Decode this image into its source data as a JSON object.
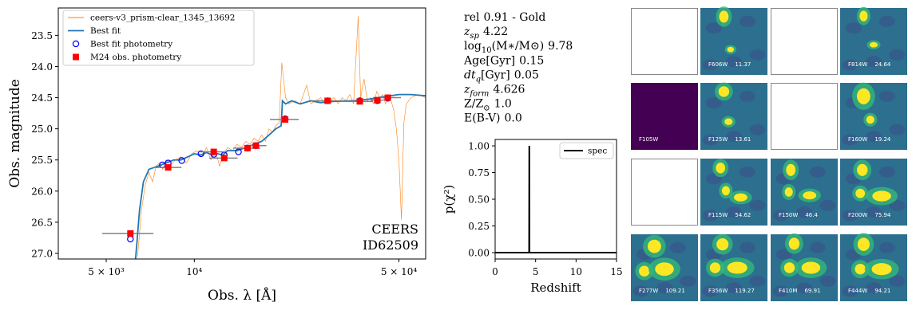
{
  "chart_data": [
    {
      "type": "line",
      "xlabel": "Obs. λ [Å]",
      "ylabel": "Obs. magnitude",
      "xlog": true,
      "xlim": [
        3430,
        61700
      ],
      "ylim": [
        27.09,
        23.06
      ],
      "xticks": [
        {
          "value": 5000,
          "label": "5 × 10³"
        },
        {
          "value": 10000,
          "label": "10⁴"
        },
        {
          "value": 50000,
          "label": "5 × 10⁴"
        }
      ],
      "yticks": [
        23.5,
        {
          "value": 24.0,
          "label": "24.0"
        },
        24.5,
        {
          "value": 25.0,
          "label": "25.0"
        },
        25.5,
        {
          "value": 26.0,
          "label": "26.0"
        },
        26.5,
        {
          "value": 27.0,
          "label": "27.0"
        }
      ],
      "legend": "upper left",
      "annotation": [
        "CEERS",
        "ID62509"
      ],
      "series": [
        {
          "name": "ceers-v3_prism-clear_1345_13692",
          "color": "#ff7f0e",
          "marker": "line",
          "width": 0.6,
          "x": [
            6400,
            6600,
            6800,
            7000,
            7200,
            7400,
            7600,
            7800,
            8000,
            8300,
            8600,
            9000,
            9400,
            9800,
            10200,
            10600,
            11000,
            11400,
            11800,
            12200,
            12600,
            13000,
            13500,
            14000,
            14500,
            15000,
            15500,
            16000,
            16500,
            17000,
            17500,
            18000,
            18500,
            19000,
            19500,
            19900,
            20500,
            21000,
            22000,
            23000,
            24200,
            25000,
            26000,
            27000,
            28000,
            29000,
            30000,
            31000,
            32000,
            33000,
            34000,
            35000,
            36290,
            37000,
            38000,
            39000,
            40000,
            41000,
            42000,
            43000,
            44000,
            45000,
            46000,
            47000,
            48000,
            49000,
            50000,
            51000,
            52000,
            53000,
            55000,
            58000,
            61700
          ],
          "values": [
            27.05,
            26.3,
            25.9,
            25.7,
            25.85,
            25.6,
            25.55,
            25.65,
            25.5,
            25.6,
            25.5,
            25.45,
            25.55,
            25.4,
            25.35,
            25.45,
            25.3,
            25.5,
            25.35,
            25.6,
            25.4,
            25.3,
            25.35,
            25.25,
            25.3,
            25.2,
            25.25,
            25.15,
            25.2,
            25.1,
            25.2,
            25.0,
            25.05,
            24.95,
            24.9,
            23.94,
            24.5,
            24.6,
            24.55,
            24.6,
            24.3,
            24.6,
            24.55,
            24.5,
            24.6,
            24.55,
            24.5,
            24.6,
            24.5,
            24.55,
            24.45,
            24.6,
            23.19,
            24.5,
            24.2,
            24.55,
            24.5,
            24.6,
            24.4,
            24.5,
            24.45,
            24.6,
            24.5,
            24.55,
            24.7,
            25.0,
            25.5,
            26.46,
            24.9,
            24.6,
            24.5,
            24.45,
            24.5
          ]
        },
        {
          "name": "Best fit",
          "color": "#1f77b4",
          "marker": "line",
          "width": 1.8,
          "x": [
            6300,
            6500,
            6700,
            7000,
            7500,
            8000,
            8500,
            9000,
            9500,
            10000,
            10500,
            11000,
            11500,
            12000,
            12500,
            13000,
            14000,
            15000,
            16000,
            17000,
            18000,
            19000,
            19800,
            20000,
            20500,
            21500,
            23000,
            25000,
            27000,
            30000,
            35000,
            40000,
            45000,
            50000,
            55000,
            61700
          ],
          "values": [
            27.09,
            26.3,
            25.85,
            25.65,
            25.6,
            25.55,
            25.5,
            25.5,
            25.45,
            25.4,
            25.42,
            25.38,
            25.42,
            25.4,
            25.42,
            25.35,
            25.35,
            25.3,
            25.25,
            25.2,
            25.1,
            25.0,
            24.95,
            24.55,
            24.6,
            24.55,
            24.6,
            24.55,
            24.58,
            24.56,
            24.55,
            24.52,
            24.48,
            24.45,
            24.45,
            24.47
          ]
        },
        {
          "name": "Best fit photometry",
          "color": "#0000ff",
          "marker": "open-circle",
          "x": [
            6048,
            7780,
            8140,
            9060,
            10540,
            11650,
            12650,
            14150,
            15190,
            16230,
            20430,
            28540,
            36750,
            42200,
            45800
          ],
          "values": [
            26.77,
            25.58,
            25.55,
            25.51,
            25.4,
            25.41,
            25.42,
            25.37,
            25.31,
            25.27,
            24.84,
            24.55,
            24.55,
            24.55,
            24.51
          ]
        },
        {
          "name": "M24 obs. photometry",
          "color": "#ff0000",
          "marker": "square",
          "errcolor": "#808080",
          "x": [
            6048,
            7780,
            8140,
            9060,
            10540,
            11650,
            12650,
            14150,
            15190,
            16230,
            20430,
            28540,
            36750,
            42200,
            45800
          ],
          "values": [
            26.68,
            null,
            25.62,
            null,
            null,
            25.37,
            25.47,
            null,
            25.31,
            25.27,
            24.85,
            24.55,
            24.56,
            24.54,
            24.5
          ],
          "xerr": [
            1200,
            700,
            900,
            700,
            1400,
            1200,
            1400,
            1900,
            1600,
            1400,
            2300,
            3500,
            4000,
            2200,
            5000
          ]
        }
      ]
    },
    {
      "type": "line",
      "xlabel": "Redshift",
      "ylabel": "p(χ²)",
      "xlim": [
        0,
        15
      ],
      "ylim": [
        -0.06,
        1.06
      ],
      "xticks": [
        0,
        5,
        10,
        15
      ],
      "yticks": [
        {
          "value": 0,
          "label": "0.00"
        },
        {
          "value": 0.25,
          "label": "0.25"
        },
        {
          "value": 0.5,
          "label": "0.50"
        },
        {
          "value": 0.75,
          "label": "0.75"
        },
        {
          "value": 1,
          "label": "1.00"
        }
      ],
      "legend": "upper right",
      "series": [
        {
          "name": "spec",
          "color": "#000000",
          "marker": "line",
          "width": 2,
          "x": [
            0,
            4.2,
            4.22,
            4.24,
            15
          ],
          "values": [
            0,
            0,
            1,
            0,
            0
          ]
        }
      ]
    }
  ],
  "properties": [
    {
      "label": "rel",
      "value": "0.91 - Gold"
    },
    {
      "label": "z",
      "sub": "sp",
      "value": "4.22"
    },
    {
      "label": "log",
      "sub": "10",
      "rest": "(M∗/M⊙)",
      "value": "9.78"
    },
    {
      "label": "Age[Gyr]",
      "value": "0.15"
    },
    {
      "label": "dt",
      "sub": "q",
      "rest": "[Gyr]",
      "value": "0.05"
    },
    {
      "label": "z",
      "sub": "form",
      "value": "4.626"
    },
    {
      "label": "Z/Z",
      "sub": "⊙",
      "value": "1.0"
    },
    {
      "label": "E(B-V)",
      "value": "0.0"
    }
  ],
  "cutouts": [
    [
      null,
      {
        "filter": "F606W",
        "snr": 11.37
      },
      null,
      {
        "filter": "F814W",
        "snr": 24.64
      }
    ],
    [
      {
        "filter": "F105W"
      },
      {
        "filter": "F125W",
        "snr": 13.61
      },
      null,
      {
        "filter": "F160W",
        "snr": 19.24
      }
    ],
    [
      null,
      {
        "filter": "F115W",
        "snr": 54.62
      },
      {
        "filter": "F150W",
        "snr": 46.4
      },
      {
        "filter": "F200W",
        "snr": 75.94
      }
    ],
    [
      {
        "filter": "F277W",
        "snr": 109.21
      },
      {
        "filter": "F356W",
        "snr": 119.27
      },
      {
        "filter": "F410M",
        "snr": 69.91
      },
      {
        "filter": "F444W",
        "snr": 94.21
      }
    ]
  ]
}
